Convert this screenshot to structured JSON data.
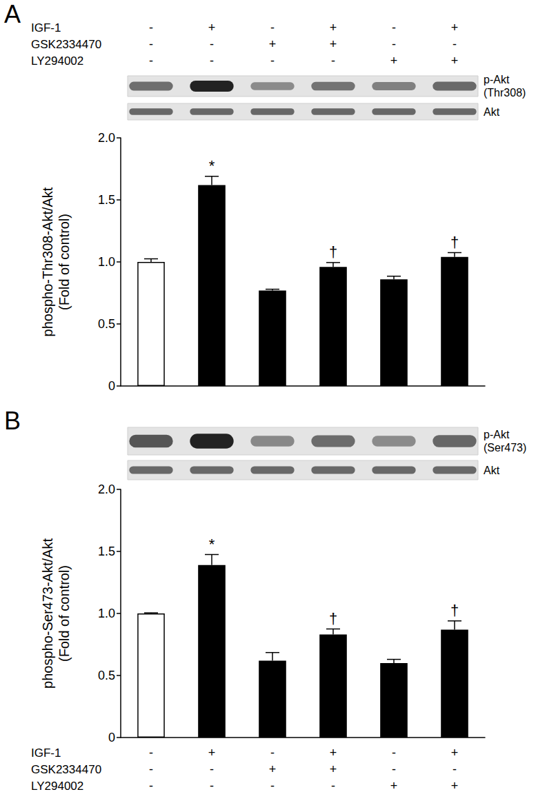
{
  "chart_data": [
    {
      "type": "bar",
      "title": "A",
      "ylabel": "phospho-Thr308-Akt/Akt\n(Fold of control)",
      "categories": [
        null,
        null,
        null,
        null,
        null,
        null
      ],
      "values": [
        1.0,
        1.62,
        0.77,
        0.96,
        0.86,
        1.04
      ],
      "errors": [
        0.025,
        0.07,
        0.01,
        0.035,
        0.025,
        0.035
      ],
      "annotations": [
        null,
        "*",
        null,
        "†",
        null,
        "†"
      ],
      "colors": [
        "#ffffff",
        "#000000",
        "#000000",
        "#000000",
        "#000000",
        "#000000"
      ],
      "ylim": [
        0,
        2
      ],
      "yticks": [
        0,
        {
          "value": 0.5,
          "label": "0.5"
        },
        {
          "value": 1,
          "label": "1.0"
        },
        {
          "value": 1.5,
          "label": "1.5"
        },
        {
          "value": 2,
          "label": "2.0"
        }
      ],
      "grid": false,
      "treatments": [
        {
          "name": "IGF-1",
          "values": [
            "-",
            "+",
            "-",
            "+",
            "-",
            "+"
          ]
        },
        {
          "name": "GSK2334470",
          "values": [
            "-",
            "-",
            "+",
            "+",
            "-",
            "-"
          ]
        },
        {
          "name": "LY294002",
          "values": [
            "-",
            "-",
            "-",
            "-",
            "+",
            "+"
          ]
        }
      ],
      "blots": [
        {
          "label": "p-Akt\n(Thr308)"
        },
        {
          "label": "Akt"
        }
      ]
    },
    {
      "type": "bar",
      "title": "B",
      "ylabel": "phospho-Ser473-Akt/Akt\n(Fold of control)",
      "categories": [
        null,
        null,
        null,
        null,
        null,
        null
      ],
      "values": [
        1.0,
        1.39,
        0.62,
        0.83,
        0.6,
        0.87
      ],
      "errors": [
        0.005,
        0.085,
        0.065,
        0.045,
        0.03,
        0.07
      ],
      "annotations": [
        null,
        "*",
        null,
        "†",
        null,
        "†"
      ],
      "colors": [
        "#ffffff",
        "#000000",
        "#000000",
        "#000000",
        "#000000",
        "#000000"
      ],
      "ylim": [
        0,
        2
      ],
      "yticks": [
        0,
        {
          "value": 0.5,
          "label": "0.5"
        },
        {
          "value": 1,
          "label": "1.0"
        },
        {
          "value": 1.5,
          "label": "1.5"
        },
        {
          "value": 2,
          "label": "2.0"
        }
      ],
      "grid": false,
      "treatments": [
        {
          "name": "IGF-1",
          "values": [
            "-",
            "+",
            "-",
            "+",
            "-",
            "+"
          ]
        },
        {
          "name": "GSK2334470",
          "values": [
            "-",
            "-",
            "+",
            "+",
            "-",
            "-"
          ]
        },
        {
          "name": "LY294002",
          "values": [
            "-",
            "-",
            "-",
            "-",
            "+",
            "+"
          ]
        }
      ],
      "blots": [
        {
          "label": "p-Akt\n(Ser473)"
        },
        {
          "label": "Akt"
        }
      ]
    }
  ]
}
